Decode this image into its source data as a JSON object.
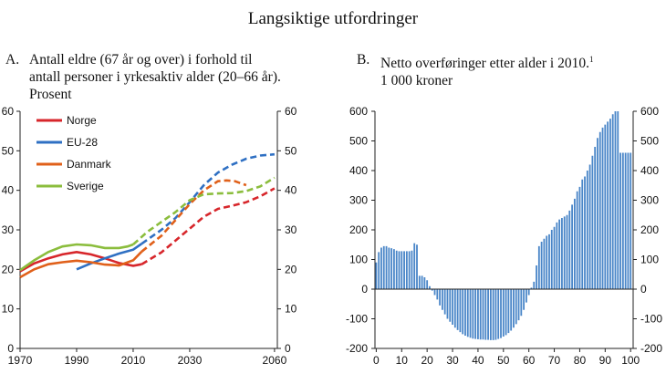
{
  "figure_title": "Langsiktige utfordringer",
  "panels": [
    {
      "letter": "A.",
      "title_lines": [
        "Antall eldre (67 år og over) i forhold til",
        "antall personer i yrkesaktiv alder (20–66 år).",
        "Prosent"
      ]
    },
    {
      "letter": "B.",
      "title_lines": [
        "Netto overføringer etter alder i 2010.",
        "1 000 kroner"
      ],
      "footnote_marker": "1"
    }
  ],
  "chart_data": [
    {
      "type": "line",
      "xlim": [
        1970,
        2061
      ],
      "ylim": [
        0,
        60
      ],
      "x_ticks": [
        1970,
        1990,
        2010,
        2030,
        2060
      ],
      "x_tick_labels": [
        "1970",
        "1990",
        "2010",
        "2030",
        "2060"
      ],
      "y_ticks": [
        0,
        10,
        20,
        30,
        40,
        50,
        60
      ],
      "y_tick_labels": [
        "0",
        "10",
        "20",
        "30",
        "40",
        "50",
        "60"
      ],
      "legend_position": "top-left",
      "grid": false,
      "projection_style": "dashed",
      "series": [
        {
          "name": "Norge",
          "color": "#d7262b",
          "historical": [
            [
              1970,
              19.5
            ],
            [
              1975,
              21.5
            ],
            [
              1980,
              22.8
            ],
            [
              1985,
              23.8
            ],
            [
              1990,
              24.4
            ],
            [
              1995,
              23.8
            ],
            [
              2000,
              22.8
            ],
            [
              2005,
              21.6
            ],
            [
              2010,
              20.9
            ],
            [
              2013,
              21.3
            ]
          ],
          "projection": [
            [
              2013,
              21.3
            ],
            [
              2020,
              24.3
            ],
            [
              2025,
              27.3
            ],
            [
              2030,
              30.3
            ],
            [
              2035,
              33.3
            ],
            [
              2040,
              35.3
            ],
            [
              2045,
              36.1
            ],
            [
              2050,
              37
            ],
            [
              2055,
              38.5
            ],
            [
              2060,
              40.5
            ]
          ]
        },
        {
          "name": "EU-28",
          "color": "#2f70c3",
          "historical": [
            [
              1990,
              20
            ],
            [
              1995,
              21.5
            ],
            [
              2000,
              22.8
            ],
            [
              2005,
              24
            ],
            [
              2010,
              25
            ],
            [
              2013,
              26.5
            ]
          ],
          "projection": [
            [
              2013,
              26.5
            ],
            [
              2020,
              30
            ],
            [
              2025,
              33
            ],
            [
              2030,
              37
            ],
            [
              2035,
              41.3
            ],
            [
              2040,
              44.5
            ],
            [
              2045,
              46.5
            ],
            [
              2050,
              48
            ],
            [
              2055,
              48.8
            ],
            [
              2060,
              49.1
            ]
          ]
        },
        {
          "name": "Danmark",
          "color": "#e0601a",
          "historical": [
            [
              1970,
              18
            ],
            [
              1975,
              20
            ],
            [
              1980,
              21.3
            ],
            [
              1985,
              21.8
            ],
            [
              1990,
              22.2
            ],
            [
              1995,
              21.8
            ],
            [
              2000,
              21.2
            ],
            [
              2005,
              21
            ],
            [
              2010,
              22.3
            ],
            [
              2013,
              24.5
            ]
          ],
          "projection": [
            [
              2013,
              24.5
            ],
            [
              2020,
              28.5
            ],
            [
              2025,
              32.5
            ],
            [
              2030,
              36.5
            ],
            [
              2035,
              40
            ],
            [
              2040,
              42.3
            ],
            [
              2043,
              42.5
            ],
            [
              2046,
              42.3
            ],
            [
              2050,
              41.3
            ]
          ]
        },
        {
          "name": "Sverige",
          "color": "#8bbd3d",
          "historical": [
            [
              1970,
              19.8
            ],
            [
              1975,
              22.3
            ],
            [
              1980,
              24.4
            ],
            [
              1985,
              25.8
            ],
            [
              1990,
              26.3
            ],
            [
              1995,
              26.1
            ],
            [
              2000,
              25.4
            ],
            [
              2005,
              25.4
            ],
            [
              2008,
              25.8
            ],
            [
              2010,
              26.3
            ]
          ],
          "projection": [
            [
              2010,
              26.3
            ],
            [
              2015,
              29.5
            ],
            [
              2020,
              32
            ],
            [
              2025,
              34.5
            ],
            [
              2030,
              37.5
            ],
            [
              2035,
              39
            ],
            [
              2040,
              39.2
            ],
            [
              2045,
              39.3
            ],
            [
              2050,
              39.8
            ],
            [
              2055,
              41
            ],
            [
              2060,
              43.2
            ]
          ]
        }
      ]
    },
    {
      "type": "bar",
      "bar_color": "#4a86c8",
      "xlim": [
        -0.5,
        101
      ],
      "ylim": [
        -200,
        600
      ],
      "x_ticks": [
        0,
        10,
        20,
        30,
        40,
        50,
        60,
        70,
        80,
        90,
        100
      ],
      "x_tick_labels": [
        "0",
        "10",
        "20",
        "30",
        "40",
        "50",
        "60",
        "70",
        "80",
        "90",
        "100"
      ],
      "y_ticks": [
        -200,
        -100,
        0,
        100,
        200,
        300,
        400,
        500,
        600
      ],
      "y_tick_labels": [
        "-200",
        "-100",
        "0",
        "100",
        "200",
        "300",
        "400",
        "500",
        "600"
      ],
      "grid": false,
      "ages": [
        0,
        1,
        2,
        3,
        4,
        5,
        6,
        7,
        8,
        9,
        10,
        11,
        12,
        13,
        14,
        15,
        16,
        17,
        18,
        19,
        20,
        21,
        22,
        23,
        24,
        25,
        26,
        27,
        28,
        29,
        30,
        31,
        32,
        33,
        34,
        35,
        36,
        37,
        38,
        39,
        40,
        41,
        42,
        43,
        44,
        45,
        46,
        47,
        48,
        49,
        50,
        51,
        52,
        53,
        54,
        55,
        56,
        57,
        58,
        59,
        60,
        61,
        62,
        63,
        64,
        65,
        66,
        67,
        68,
        69,
        70,
        71,
        72,
        73,
        74,
        75,
        76,
        77,
        78,
        79,
        80,
        81,
        82,
        83,
        84,
        85,
        86,
        87,
        88,
        89,
        90,
        91,
        92,
        93,
        94,
        95,
        96,
        97,
        98,
        99,
        100
      ],
      "values": [
        90,
        125,
        140,
        145,
        145,
        140,
        138,
        135,
        130,
        128,
        128,
        128,
        128,
        128,
        130,
        155,
        150,
        45,
        45,
        40,
        30,
        10,
        -5,
        -20,
        -35,
        -55,
        -70,
        -85,
        -100,
        -110,
        -120,
        -130,
        -138,
        -145,
        -152,
        -157,
        -161,
        -164,
        -167,
        -168,
        -169,
        -170,
        -170,
        -171,
        -171,
        -172,
        -172,
        -171,
        -168,
        -165,
        -160,
        -155,
        -148,
        -140,
        -130,
        -118,
        -105,
        -90,
        -70,
        -45,
        -20,
        5,
        25,
        80,
        145,
        160,
        170,
        180,
        185,
        200,
        210,
        225,
        235,
        240,
        245,
        250,
        265,
        285,
        305,
        330,
        345,
        370,
        380,
        400,
        420,
        450,
        480,
        510,
        530,
        545,
        555,
        565,
        575,
        590,
        600,
        600,
        460,
        460,
        460,
        460,
        460
      ]
    }
  ]
}
